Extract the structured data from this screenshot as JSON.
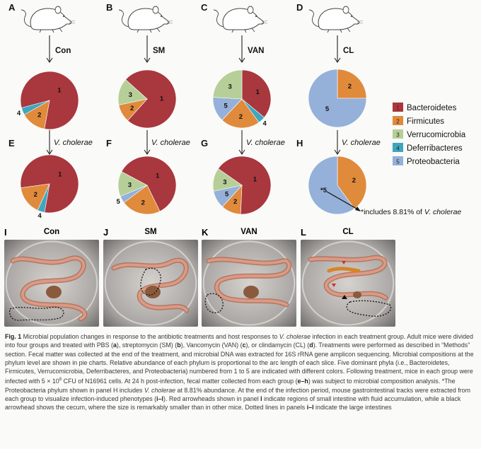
{
  "colors": {
    "Bacteroidetes": "#a9373e",
    "Firmicutes": "#e08a3c",
    "Verrucomicrobia": "#b6cf98",
    "Deferribacteres": "#3fa6c0",
    "Proteobacteria": "#95b1d9"
  },
  "panels_top": [
    {
      "letter": "A",
      "label": "Con"
    },
    {
      "letter": "B",
      "label": "SM"
    },
    {
      "letter": "C",
      "label": "VAN"
    },
    {
      "letter": "D",
      "label": "CL"
    }
  ],
  "panels_mid": [
    {
      "letter": "E",
      "label": "V. cholerae"
    },
    {
      "letter": "F",
      "label": "V. cholerae"
    },
    {
      "letter": "G",
      "label": "V. cholerae"
    },
    {
      "letter": "H",
      "label": "V. cholerae"
    }
  ],
  "photo_panels": [
    {
      "letter": "I",
      "label": "Con"
    },
    {
      "letter": "J",
      "label": "SM"
    },
    {
      "letter": "K",
      "label": "VAN"
    },
    {
      "letter": "L",
      "label": "CL"
    }
  ],
  "legend": [
    {
      "num": "1",
      "name": "Bacteroidetes",
      "color": "#a9373e"
    },
    {
      "num": "2",
      "name": "Firmicutes",
      "color": "#e08a3c"
    },
    {
      "num": "3",
      "name": "Verrucomicrobia",
      "color": "#b6cf98"
    },
    {
      "num": "4",
      "name": "Deferribacteres",
      "color": "#3fa6c0"
    },
    {
      "num": "5",
      "name": "Proteobacteria",
      "color": "#95b1d9"
    }
  ],
  "footnote": {
    "text": "*includes 8.81% of ",
    "italic": "V. cholerae"
  },
  "chart_data": [
    {
      "type": "pie",
      "panel": "A",
      "slices": [
        {
          "label": "1",
          "value": 82
        },
        {
          "label": "2",
          "value": 14
        },
        {
          "label": "4",
          "value": 4
        }
      ]
    },
    {
      "type": "pie",
      "panel": "B",
      "slices": [
        {
          "label": "1",
          "value": 75
        },
        {
          "label": "2",
          "value": 10
        },
        {
          "label": "3",
          "value": 15
        }
      ]
    },
    {
      "type": "pie",
      "panel": "C",
      "slices": [
        {
          "label": "1",
          "value": 36
        },
        {
          "label": "4",
          "value": 4
        },
        {
          "label": "2",
          "value": 22
        },
        {
          "label": "5",
          "value": 14
        },
        {
          "label": "3",
          "value": 24
        }
      ]
    },
    {
      "type": "pie",
      "panel": "D",
      "slices": [
        {
          "label": "2",
          "value": 25
        },
        {
          "label": "5",
          "value": 75
        }
      ]
    },
    {
      "type": "pie",
      "panel": "E",
      "slices": [
        {
          "label": "1",
          "value": 80
        },
        {
          "label": "4",
          "value": 4
        },
        {
          "label": "2",
          "value": 16
        }
      ]
    },
    {
      "type": "pie",
      "panel": "F",
      "slices": [
        {
          "label": "1",
          "value": 60
        },
        {
          "label": "2",
          "value": 22
        },
        {
          "label": "5",
          "value": 4
        },
        {
          "label": "3",
          "value": 14
        }
      ]
    },
    {
      "type": "pie",
      "panel": "G",
      "slices": [
        {
          "label": "1",
          "value": 66
        },
        {
          "label": "2",
          "value": 11
        },
        {
          "label": "5",
          "value": 10
        },
        {
          "label": "3",
          "value": 13
        }
      ]
    },
    {
      "type": "pie",
      "panel": "H",
      "slices": [
        {
          "label": "2",
          "value": 40
        },
        {
          "label": "*5",
          "value": 60
        }
      ]
    }
  ],
  "caption": {
    "fig_label": "Fig. 1",
    "s1": " Microbial population changes in response to the antibiotic treatments and host responses to ",
    "s1i": "V. cholerae",
    "s2": " infection in each treatment group. Adult mice were divided into four groups and treated with PBS (",
    "b_a": "a",
    "s3": "), streptomycin (SM) (",
    "b_b": "b",
    "s4": "), Vancomycin (VAN) (",
    "b_c": "c",
    "s5": "), or clindamycin (CL) (",
    "b_d": "d",
    "s6": "). Treatments were performed as described in “Methods” section. Fecal matter was collected at the end of the treatment, and microbial DNA was extracted for 16S rRNA gene amplicon sequencing. Microbial compositions at the phylum level are shown in pie charts. Relative abundance of each phylum is proportional to the arc length of each slice. Five dominant phyla (i.e., Bacteroidetes, Firmicutes, Verrucomicrobia, Deferribacteres, and Proteobacteria) numbered from 1 to 5 are indicated with different colors. Following treatment, mice in each group were infected with 5 × 10",
    "sup8": "8",
    "s7": " CFU of N16961 cells. At 24 h post-infection, fecal matter collected from each group (",
    "b_eh": "e–h",
    "s8": ") was subject to microbial composition analysis. *The Proteobacteria phylum shown in panel H includes ",
    "s8i": "V. cholerae",
    "s9": " at 8.81% abundance. At the end of the infection period, mouse gastrointestinal tracks were extracted from each group to visualize infection-induced phenotypes (",
    "b_il": "i–l",
    "s10": "). Red arrowheads shown in panel ",
    "b_l": "l",
    "s11": " indicate regions of small intestine with fluid accumulation, while a black arrowhead shows the cecum, where the size is remarkably smaller than in other mice. Dotted lines in panels ",
    "b_il2": "i–l",
    "s12": " indicate the large intestines"
  }
}
